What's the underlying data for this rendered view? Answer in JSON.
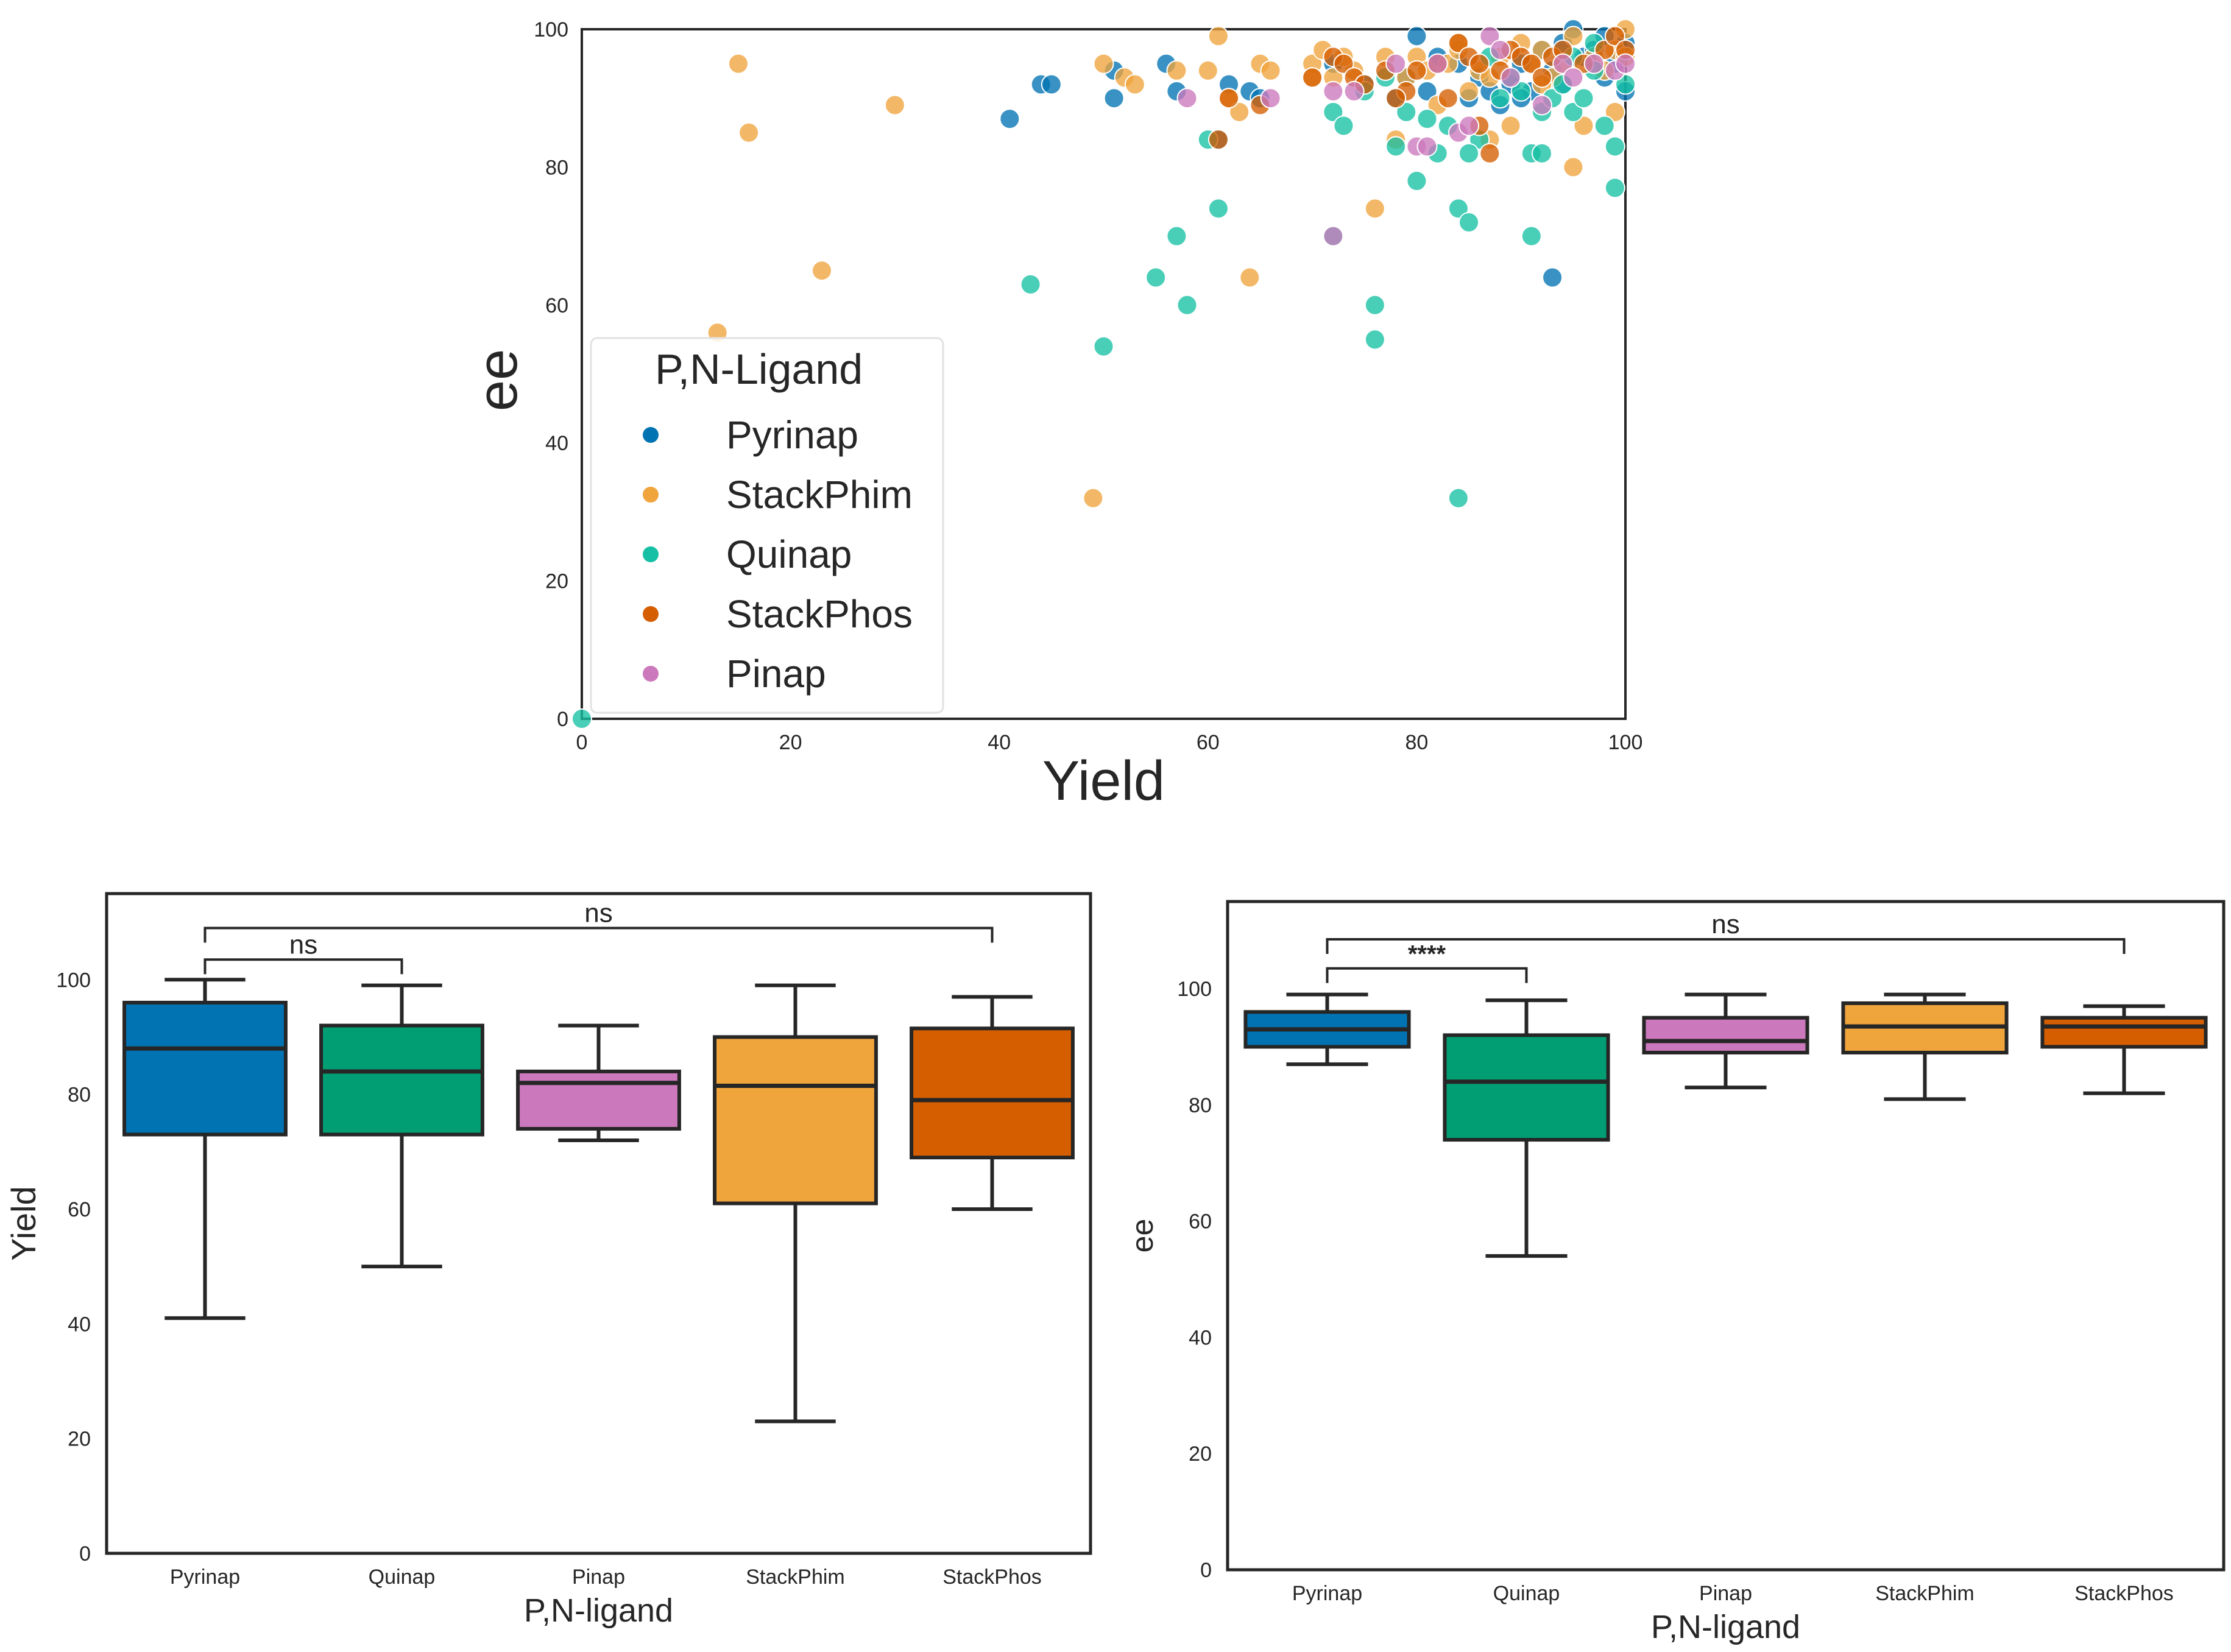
{
  "colors": {
    "Pyrinap": "#0173b2",
    "StackPhim": "#f0a43c",
    "Quinap": "#029e73",
    "StackPhos": "#d55e00",
    "Pinap": "#cc78bc",
    "quinap_scatter": "#16c0a4",
    "frame": "#262626"
  },
  "chart_data": [
    {
      "type": "scatter",
      "xlabel": "Yield",
      "ylabel": "ee",
      "xlim": [
        0,
        100
      ],
      "ylim": [
        0,
        100
      ],
      "xticks": [
        "0",
        "20",
        "40",
        "60",
        "80",
        "100"
      ],
      "yticks": [
        "0",
        "20",
        "40",
        "60",
        "80",
        "100"
      ],
      "legend": {
        "title": "P,N-Ligand",
        "placement": "lower-left",
        "entries": [
          "Pyrinap",
          "StackPhim",
          "Quinap",
          "StackPhos",
          "Pinap"
        ]
      },
      "series": [
        {
          "name": "Pyrinap",
          "points": [
            [
              41,
              87
            ],
            [
              44,
              92
            ],
            [
              45,
              92
            ],
            [
              51,
              90
            ],
            [
              51,
              94
            ],
            [
              56,
              95
            ],
            [
              57,
              91
            ],
            [
              61,
              84
            ],
            [
              62,
              92
            ],
            [
              64,
              91
            ],
            [
              65,
              90
            ],
            [
              72,
              95
            ],
            [
              75,
              92
            ],
            [
              78,
              90
            ],
            [
              79,
              93
            ],
            [
              80,
              99
            ],
            [
              81,
              91
            ],
            [
              82,
              96
            ],
            [
              84,
              95
            ],
            [
              85,
              90
            ],
            [
              86,
              93
            ],
            [
              87,
              91
            ],
            [
              88,
              89
            ],
            [
              89,
              92
            ],
            [
              90,
              95
            ],
            [
              91,
              91
            ],
            [
              92,
              97
            ],
            [
              93,
              94
            ],
            [
              93,
              64
            ],
            [
              94,
              98
            ],
            [
              95,
              100
            ],
            [
              96,
              96
            ],
            [
              97,
              97
            ],
            [
              98,
              93
            ],
            [
              99,
              95
            ],
            [
              100,
              98
            ],
            [
              100,
              91
            ],
            [
              98,
              99
            ],
            [
              90,
              90
            ],
            [
              94,
              92
            ]
          ]
        },
        {
          "name": "StackPhim",
          "points": [
            [
              13,
              56
            ],
            [
              15,
              95
            ],
            [
              16,
              85
            ],
            [
              23,
              65
            ],
            [
              30,
              89
            ],
            [
              49,
              32
            ],
            [
              50,
              95
            ],
            [
              52,
              93
            ],
            [
              53,
              92
            ],
            [
              57,
              94
            ],
            [
              60,
              94
            ],
            [
              61,
              99
            ],
            [
              62,
              90
            ],
            [
              63,
              88
            ],
            [
              64,
              64
            ],
            [
              65,
              95
            ],
            [
              66,
              94
            ],
            [
              70,
              95
            ],
            [
              71,
              97
            ],
            [
              72,
              93
            ],
            [
              74,
              94
            ],
            [
              76,
              74
            ],
            [
              77,
              96
            ],
            [
              78,
              84
            ],
            [
              79,
              93
            ],
            [
              80,
              96
            ],
            [
              81,
              94
            ],
            [
              82,
              89
            ],
            [
              83,
              95
            ],
            [
              84,
              97
            ],
            [
              85,
              91
            ],
            [
              86,
              94
            ],
            [
              87,
              93
            ],
            [
              88,
              96
            ],
            [
              89,
              86
            ],
            [
              90,
              98
            ],
            [
              91,
              95
            ],
            [
              92,
              97
            ],
            [
              93,
              93
            ],
            [
              94,
              95
            ],
            [
              95,
              80
            ],
            [
              95,
              99
            ],
            [
              96,
              86
            ],
            [
              97,
              96
            ],
            [
              98,
              94
            ],
            [
              99,
              97
            ],
            [
              100,
              96
            ],
            [
              99,
              88
            ],
            [
              100,
              100
            ],
            [
              87,
              84
            ],
            [
              84,
              98
            ],
            [
              92,
              92
            ],
            [
              70,
              93
            ],
            [
              73,
              96
            ]
          ]
        },
        {
          "name": "Quinap",
          "points": [
            [
              0,
              0
            ],
            [
              43,
              63
            ],
            [
              50,
              54
            ],
            [
              55,
              64
            ],
            [
              57,
              70
            ],
            [
              58,
              60
            ],
            [
              60,
              84
            ],
            [
              61,
              74
            ],
            [
              72,
              88
            ],
            [
              72,
              70
            ],
            [
              73,
              86
            ],
            [
              75,
              91
            ],
            [
              76,
              60
            ],
            [
              76,
              55
            ],
            [
              77,
              93
            ],
            [
              78,
              83
            ],
            [
              79,
              88
            ],
            [
              80,
              78
            ],
            [
              81,
              87
            ],
            [
              82,
              82
            ],
            [
              83,
              86
            ],
            [
              84,
              74
            ],
            [
              84,
              32
            ],
            [
              85,
              72
            ],
            [
              86,
              84
            ],
            [
              87,
              96
            ],
            [
              88,
              90
            ],
            [
              89,
              93
            ],
            [
              90,
              91
            ],
            [
              91,
              82
            ],
            [
              91,
              70
            ],
            [
              92,
              88
            ],
            [
              93,
              90
            ],
            [
              94,
              92
            ],
            [
              95,
              88
            ],
            [
              96,
              90
            ],
            [
              97,
              94
            ],
            [
              98,
              86
            ],
            [
              99,
              83
            ],
            [
              99,
              77
            ],
            [
              100,
              92
            ],
            [
              85,
              82
            ],
            [
              92,
              82
            ],
            [
              95,
              96
            ],
            [
              97,
              98
            ]
          ]
        },
        {
          "name": "StackPhos",
          "points": [
            [
              61,
              84
            ],
            [
              62,
              90
            ],
            [
              65,
              89
            ],
            [
              70,
              93
            ],
            [
              72,
              96
            ],
            [
              73,
              95
            ],
            [
              74,
              93
            ],
            [
              75,
              92
            ],
            [
              77,
              94
            ],
            [
              79,
              91
            ],
            [
              80,
              94
            ],
            [
              82,
              95
            ],
            [
              83,
              90
            ],
            [
              84,
              98
            ],
            [
              85,
              96
            ],
            [
              86,
              95
            ],
            [
              87,
              82
            ],
            [
              88,
              94
            ],
            [
              89,
              97
            ],
            [
              90,
              96
            ],
            [
              91,
              95
            ],
            [
              92,
              93
            ],
            [
              93,
              96
            ],
            [
              94,
              97
            ],
            [
              96,
              95
            ],
            [
              98,
              97
            ],
            [
              99,
              99
            ],
            [
              100,
              97
            ],
            [
              78,
              90
            ],
            [
              86,
              86
            ]
          ]
        },
        {
          "name": "Pinap",
          "points": [
            [
              58,
              90
            ],
            [
              66,
              90
            ],
            [
              72,
              70
            ],
            [
              72,
              91
            ],
            [
              74,
              91
            ],
            [
              78,
              95
            ],
            [
              80,
              83
            ],
            [
              81,
              83
            ],
            [
              82,
              95
            ],
            [
              84,
              85
            ],
            [
              85,
              86
            ],
            [
              87,
              99
            ],
            [
              88,
              97
            ],
            [
              89,
              93
            ],
            [
              92,
              89
            ],
            [
              94,
              95
            ],
            [
              95,
              93
            ],
            [
              97,
              95
            ],
            [
              99,
              94
            ],
            [
              100,
              95
            ]
          ]
        }
      ]
    },
    {
      "type": "box",
      "xlabel": "P,N-ligand",
      "ylabel": "Yield",
      "ylim": [
        0,
        115
      ],
      "yticks": [
        "0",
        "20",
        "40",
        "60",
        "80",
        "100"
      ],
      "categories": [
        "Pyrinap",
        "Quinap",
        "Pinap",
        "StackPhim",
        "StackPhos"
      ],
      "boxes": [
        {
          "name": "Pyrinap",
          "whisker_low": 41,
          "q1": 73,
          "median": 88,
          "q3": 96,
          "whisker_high": 100
        },
        {
          "name": "Quinap",
          "whisker_low": 50,
          "q1": 73,
          "median": 84,
          "q3": 92,
          "whisker_high": 99
        },
        {
          "name": "Pinap",
          "whisker_low": 72,
          "q1": 74,
          "median": 82,
          "q3": 84,
          "whisker_high": 92
        },
        {
          "name": "StackPhim",
          "whisker_low": 23,
          "q1": 61,
          "median": 81.5,
          "q3": 90,
          "whisker_high": 99
        },
        {
          "name": "StackPhos",
          "whisker_low": 60,
          "q1": 69,
          "median": 79,
          "q3": 91.5,
          "whisker_high": 97
        }
      ],
      "annotations": [
        {
          "from": "Pyrinap",
          "to": "Quinap",
          "y": 103.5,
          "label": "ns"
        },
        {
          "from": "Pyrinap",
          "to": "StackPhos",
          "y": 109,
          "label": "ns"
        }
      ]
    },
    {
      "type": "box",
      "xlabel": "P,N-ligand",
      "ylabel": "ee",
      "ylim": [
        0,
        115
      ],
      "yticks": [
        "0",
        "20",
        "40",
        "60",
        "80",
        "100"
      ],
      "categories": [
        "Pyrinap",
        "Quinap",
        "Pinap",
        "StackPhim",
        "StackPhos"
      ],
      "boxes": [
        {
          "name": "Pyrinap",
          "whisker_low": 87,
          "q1": 90,
          "median": 93,
          "q3": 96,
          "whisker_high": 99
        },
        {
          "name": "Quinap",
          "whisker_low": 54,
          "q1": 74,
          "median": 84,
          "q3": 92,
          "whisker_high": 98
        },
        {
          "name": "Pinap",
          "whisker_low": 83,
          "q1": 89,
          "median": 91,
          "q3": 95,
          "whisker_high": 99
        },
        {
          "name": "StackPhim",
          "whisker_low": 81,
          "q1": 89,
          "median": 93.5,
          "q3": 97.5,
          "whisker_high": 99
        },
        {
          "name": "StackPhos",
          "whisker_low": 82,
          "q1": 90,
          "median": 93.5,
          "q3": 95,
          "whisker_high": 97
        }
      ],
      "annotations": [
        {
          "from": "Pyrinap",
          "to": "Quinap",
          "y": 103.5,
          "label": "****"
        },
        {
          "from": "Pyrinap",
          "to": "StackPhos",
          "y": 108.5,
          "label": "ns"
        }
      ]
    }
  ]
}
